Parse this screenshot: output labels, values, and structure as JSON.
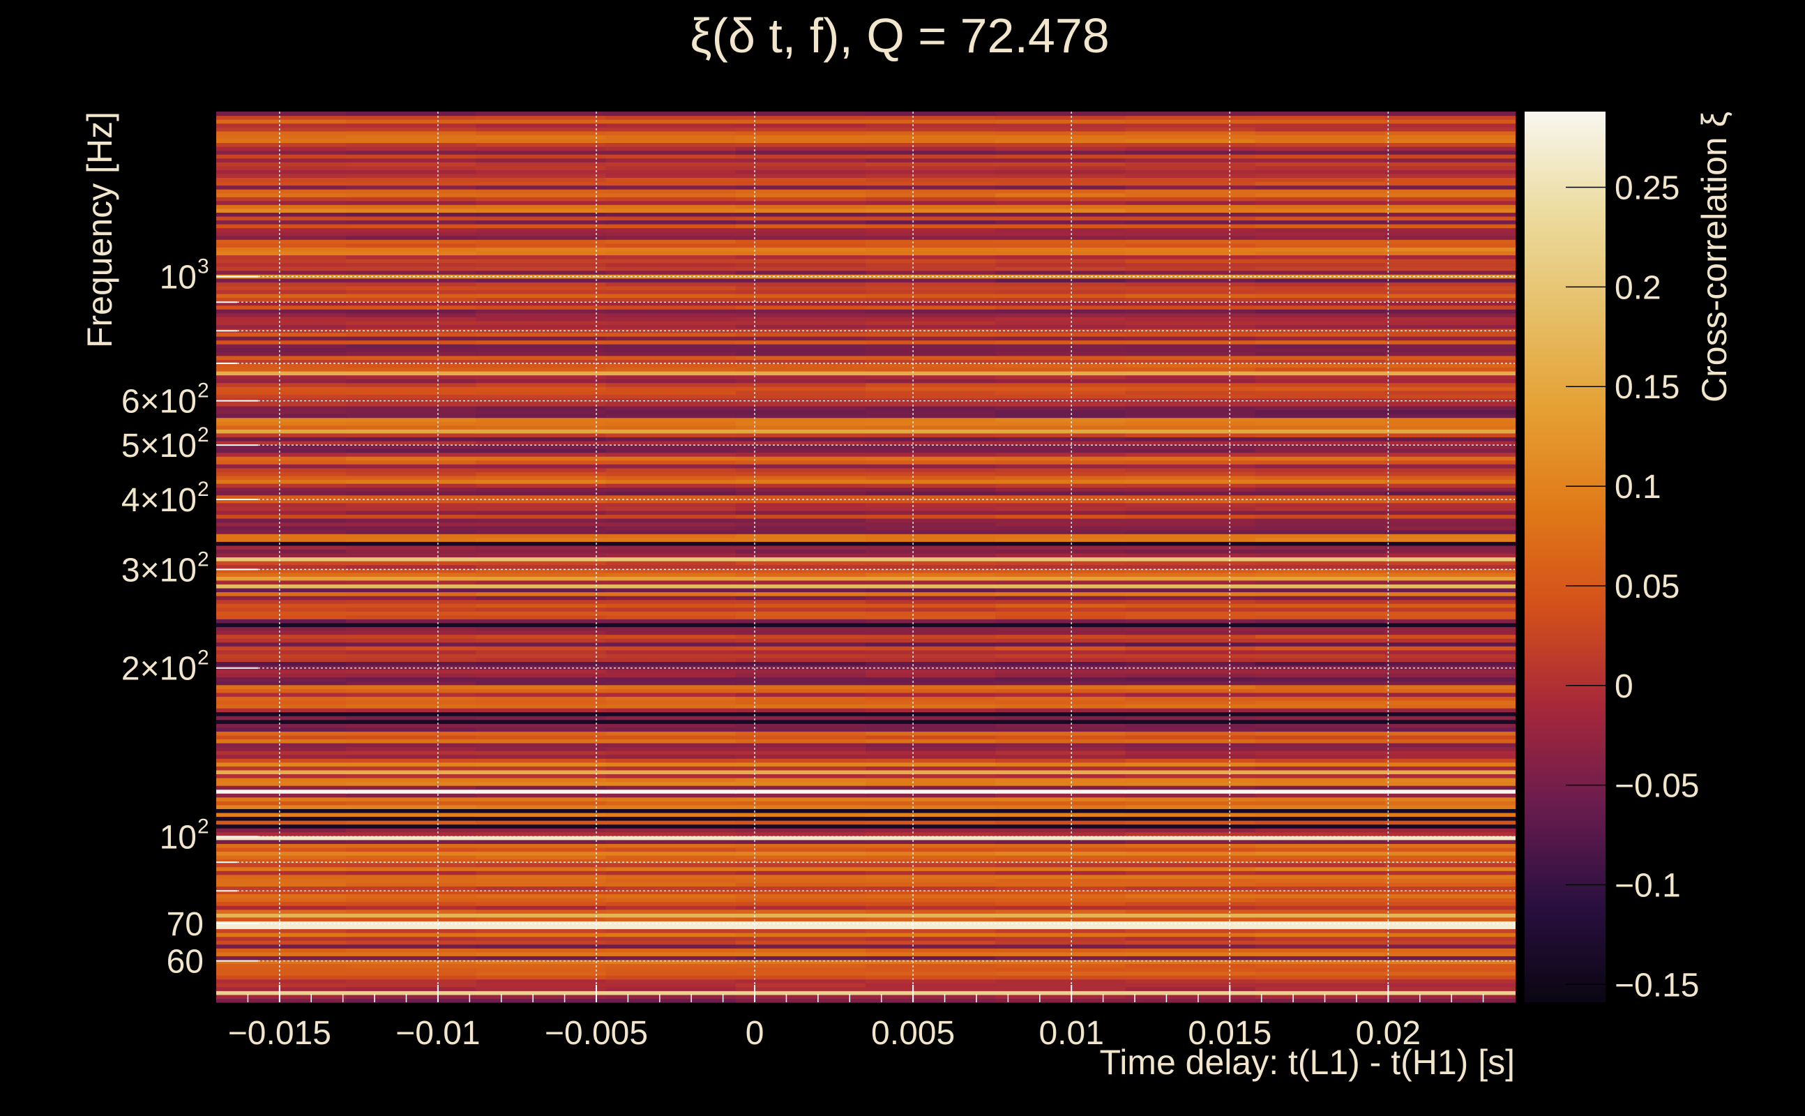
{
  "chart_data": {
    "type": "heatmap",
    "title": "ξ(δ t, f), Q = 72.478",
    "xlabel": "Time delay: t(L1) - t(H1) [s]",
    "ylabel": "Frequency [Hz]",
    "colorbar_label": "Cross-correlation ξ",
    "xlim": [
      -0.017,
      0.024
    ],
    "ylim": [
      50.6,
      1970
    ],
    "yscale": "log",
    "clim": [
      -0.159,
      0.288
    ],
    "grid": true,
    "x_ticks": [
      {
        "value": -0.015,
        "label": "−0.015"
      },
      {
        "value": -0.01,
        "label": "−0.01"
      },
      {
        "value": -0.005,
        "label": "−0.005"
      },
      {
        "value": 0,
        "label": "0"
      },
      {
        "value": 0.005,
        "label": "0.005"
      },
      {
        "value": 0.01,
        "label": "0.01"
      },
      {
        "value": 0.015,
        "label": "0.015"
      },
      {
        "value": 0.02,
        "label": "0.02"
      }
    ],
    "y_ticks": [
      {
        "value": 60,
        "base": "60",
        "exp": ""
      },
      {
        "value": 70,
        "base": "70",
        "exp": ""
      },
      {
        "value": 100,
        "base": "10",
        "exp": "2"
      },
      {
        "value": 200,
        "base": "2×10",
        "exp": "2"
      },
      {
        "value": 300,
        "base": "3×10",
        "exp": "2"
      },
      {
        "value": 400,
        "base": "4×10",
        "exp": "2"
      },
      {
        "value": 500,
        "base": "5×10",
        "exp": "2"
      },
      {
        "value": 600,
        "base": "6×10",
        "exp": "2"
      },
      {
        "value": 1000,
        "base": "10",
        "exp": "3"
      }
    ],
    "y_minor_ticks": [
      80,
      90,
      700,
      800,
      900
    ],
    "colorbar_ticks": [
      {
        "value": 0.25,
        "label": "0.25"
      },
      {
        "value": 0.2,
        "label": "0.2"
      },
      {
        "value": 0.15,
        "label": "0.15"
      },
      {
        "value": 0.1,
        "label": "0.1"
      },
      {
        "value": 0.05,
        "label": "0.05"
      },
      {
        "value": 0,
        "label": "0"
      },
      {
        "value": -0.05,
        "label": "−0.05"
      },
      {
        "value": -0.1,
        "label": "−0.1"
      },
      {
        "value": -0.15,
        "label": "−0.15"
      }
    ],
    "colormap": [
      "#0a0612",
      "#2a1040",
      "#6a1c4e",
      "#a8283a",
      "#d4501a",
      "#e07a18",
      "#e5a033",
      "#e6c06a",
      "#ecdca0",
      "#f8f6f0"
    ],
    "bright_lines_hz": [
      {
        "freq": 53,
        "value": 0.22
      },
      {
        "freq": 69.5,
        "value": 0.27
      },
      {
        "freq": 72,
        "value": 0.17
      },
      {
        "freq": 99.5,
        "value": 0.26
      },
      {
        "freq": 120,
        "value": 0.29
      },
      {
        "freq": 131,
        "value": 0.16
      },
      {
        "freq": 280,
        "value": 0.18
      },
      {
        "freq": 290,
        "value": 0.14
      },
      {
        "freq": 315,
        "value": 0.2
      },
      {
        "freq": 530,
        "value": 0.15
      },
      {
        "freq": 670,
        "value": 0.16
      },
      {
        "freq": 1000,
        "value": 0.12
      }
    ],
    "dark_lines_hz": [
      105,
      108,
      112,
      160,
      166,
      238,
      335
    ]
  }
}
